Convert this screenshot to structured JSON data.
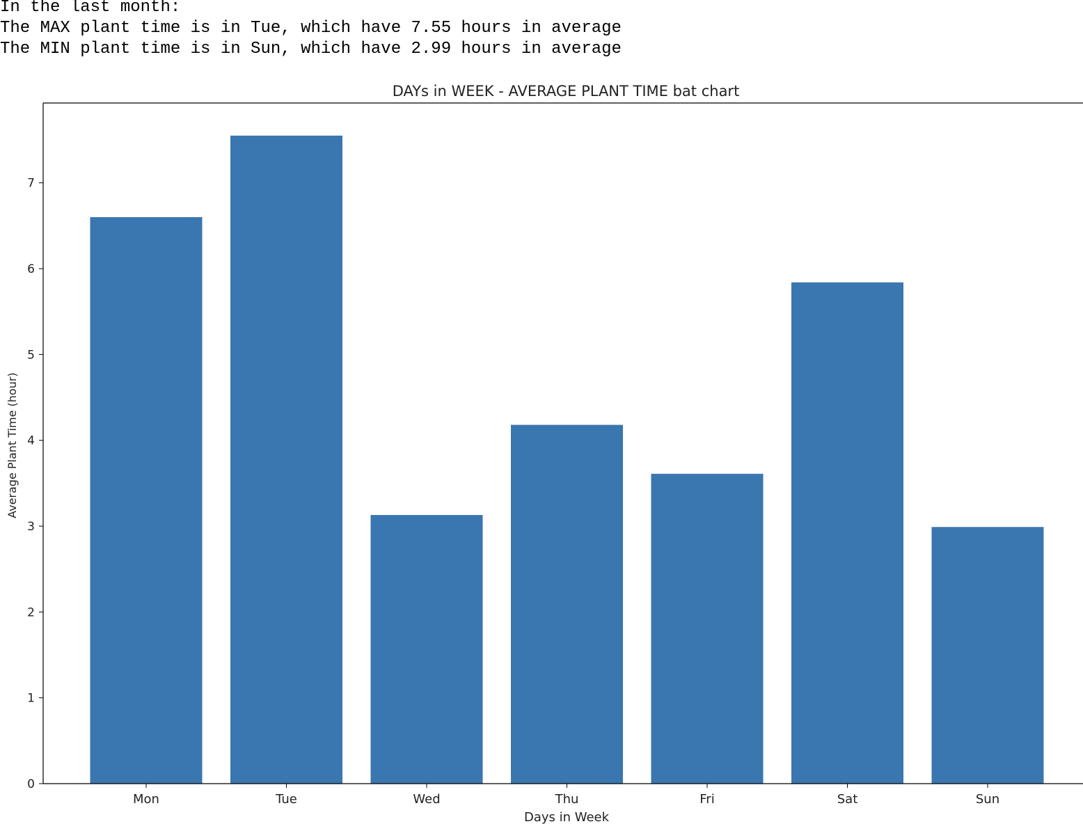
{
  "output": {
    "lines": [
      "In the last month:",
      "The MAX plant time is in Tue, which have 7.55 hours in average",
      "The MIN plant time is in Sun, which have 2.99 hours in average"
    ]
  },
  "chart_data": {
    "type": "bar",
    "title": "DAYs in WEEK - AVERAGE PLANT TIME bat chart",
    "xlabel": "Days in Week",
    "ylabel": "Average Plant Time (hour)",
    "categories": [
      "Mon",
      "Tue",
      "Wed",
      "Thu",
      "Fri",
      "Sat",
      "Sun"
    ],
    "values": [
      6.6,
      7.55,
      3.13,
      4.18,
      3.61,
      5.84,
      2.99
    ],
    "ylim": [
      0,
      7.93
    ],
    "yticks": [
      0,
      1,
      2,
      3,
      4,
      5,
      6,
      7
    ],
    "bar_color": "#3a76af",
    "grid": false,
    "legend": "none"
  }
}
